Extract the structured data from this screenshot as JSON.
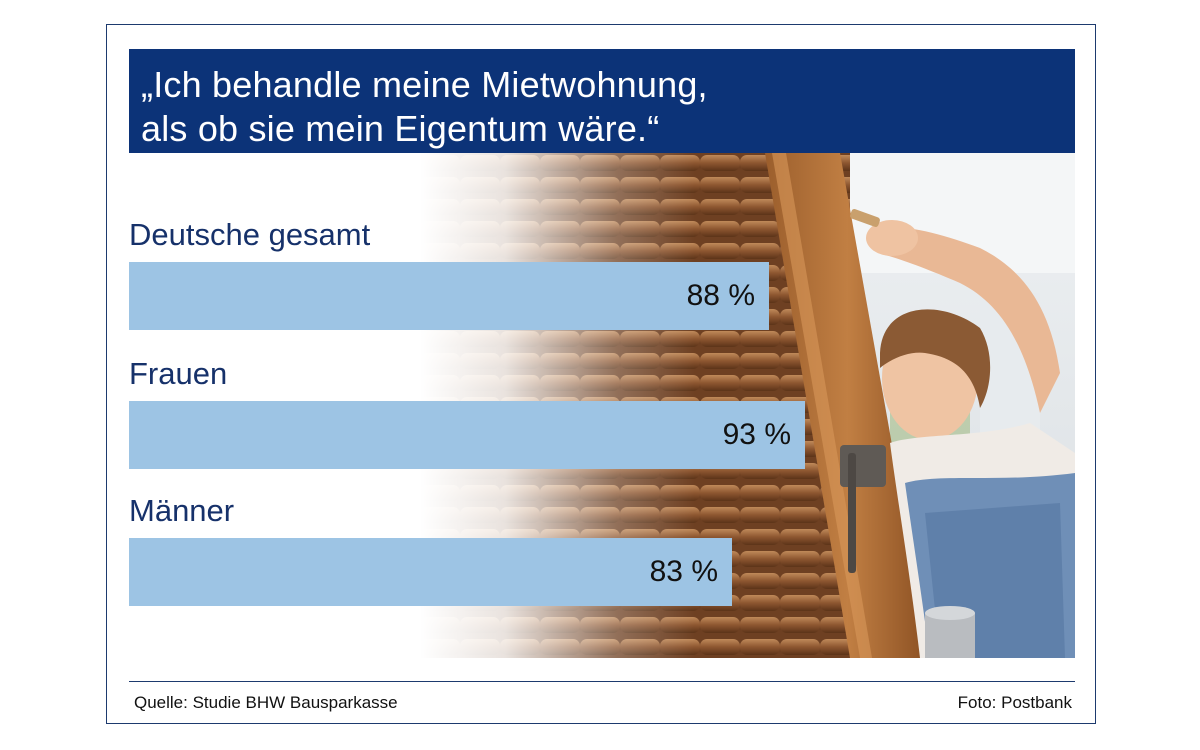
{
  "title": {
    "line1": "„Ich behandle meine Mietwohnung,",
    "line2": "als ob sie mein Eigentum wäre.“"
  },
  "chart_data": {
    "type": "bar",
    "orientation": "horizontal",
    "title": "„Ich behandle meine Mietwohnung, als ob sie mein Eigentum wäre.“",
    "categories": [
      "Deutsche gesamt",
      "Frauen",
      "Männer"
    ],
    "values": [
      88,
      93,
      83
    ],
    "value_labels": [
      "88 %",
      "93 %",
      "83 %"
    ],
    "unit": "%",
    "xlim": [
      0,
      100
    ],
    "bar_color": "#9dc4e4",
    "grid": false,
    "legend": "none"
  },
  "footer": {
    "source": "Quelle: Studie BHW Bausparkasse",
    "credit": "Foto: Postbank"
  },
  "colors": {
    "header_bg": "#0c3378",
    "label_text": "#16316a",
    "frame": "#1d3a6e"
  },
  "photo": {
    "icon": "woman-painting-shutter-photo"
  }
}
